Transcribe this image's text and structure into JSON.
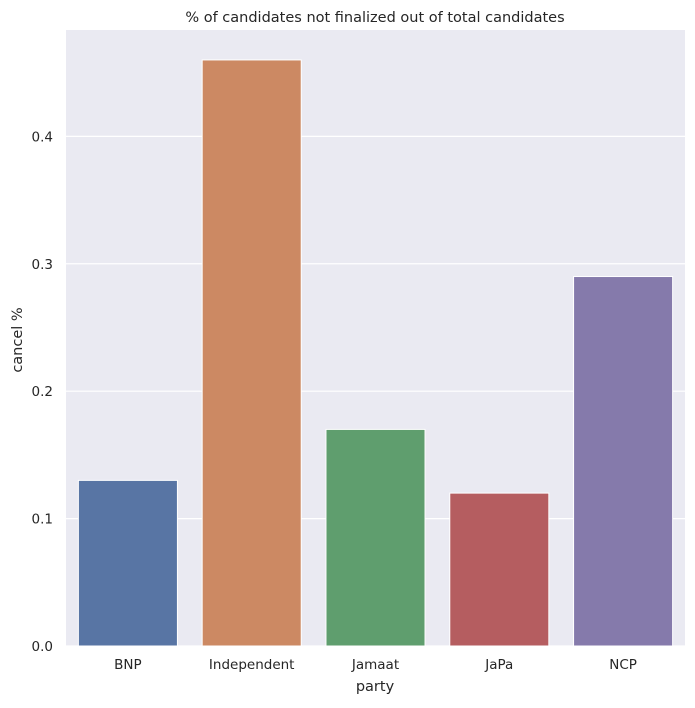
{
  "chart_data": {
    "type": "bar",
    "title": "% of candidates not finalized out of total candidates",
    "xlabel": "party",
    "ylabel": "cancel %",
    "categories": [
      "BNP",
      "Independent",
      "Jamaat",
      "JaPa",
      "NCP"
    ],
    "values": [
      0.13,
      0.46,
      0.17,
      0.12,
      0.29
    ],
    "colors": [
      "#5875a4",
      "#cc8963",
      "#5f9e6e",
      "#b55d60",
      "#857aab"
    ],
    "ylim": [
      0,
      0.4835
    ],
    "yticks": [
      0.0,
      0.1,
      0.2,
      0.3,
      0.4
    ],
    "ytick_labels": [
      "0.0",
      "0.1",
      "0.2",
      "0.3",
      "0.4"
    ],
    "grid": true,
    "background": "#eaeaf2",
    "grid_color": "#ffffff"
  }
}
